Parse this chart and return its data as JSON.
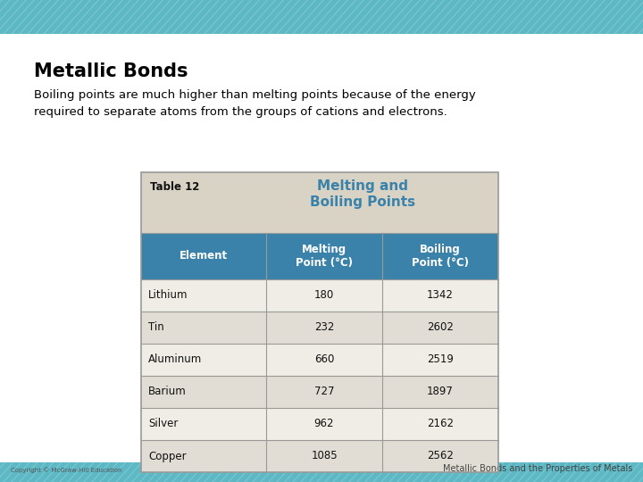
{
  "title": "Metallic Bonds",
  "subtitle": "Boiling points are much higher than melting points because of the energy\nrequired to separate atoms from the groups of cations and electrons.",
  "table_title_black": "Table 12",
  "table_title_blue": "Melting and\nBoiling Points",
  "col_headers": [
    "Element",
    "Melting\nPoint (°C)",
    "Boiling\nPoint (°C)"
  ],
  "rows": [
    [
      "Lithium",
      "180",
      "1342"
    ],
    [
      "Tin",
      "232",
      "2602"
    ],
    [
      "Aluminum",
      "660",
      "2519"
    ],
    [
      "Barium",
      "727",
      "1897"
    ],
    [
      "Silver",
      "962",
      "2162"
    ],
    [
      "Copper",
      "1085",
      "2562"
    ]
  ],
  "header_bg": "#3A82AA",
  "header_text": "#FFFFFF",
  "table_title_bg": "#D8D3C5",
  "row_even_bg": "#F0EDE6",
  "row_odd_bg": "#E2DDD4",
  "table_border": "#999999",
  "slide_bg": "#FFFFFF",
  "top_stripe_color": "#5BB8C4",
  "title_color": "#000000",
  "subtitle_color": "#000000",
  "footer_left": "Copyright © McGraw-Hill Education",
  "footer_right": "Metallic Bonds and the Properties of Metals",
  "table_title_blue_color": "#3A82AA"
}
